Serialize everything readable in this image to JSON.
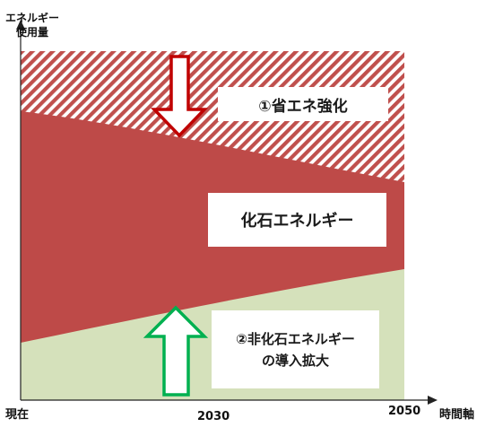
{
  "axes": {
    "y_label_line1": "エネルギー",
    "y_label_line2": "使用量",
    "x_label": "時間軸",
    "x_ticks": [
      "現在",
      "2030",
      "2050"
    ]
  },
  "regions": {
    "efficiency": "①省エネ強化",
    "fossil": "化石エネルギー",
    "nonfossil_line1": "②非化石エネルギー",
    "nonfossil_line2": "の導入拡大"
  },
  "colors": {
    "fossil": "#be4a48",
    "hatch": "#c0504d",
    "nonfossil": "#d5e1bb",
    "down_arrow": "#c00000",
    "up_arrow": "#00b050"
  }
}
